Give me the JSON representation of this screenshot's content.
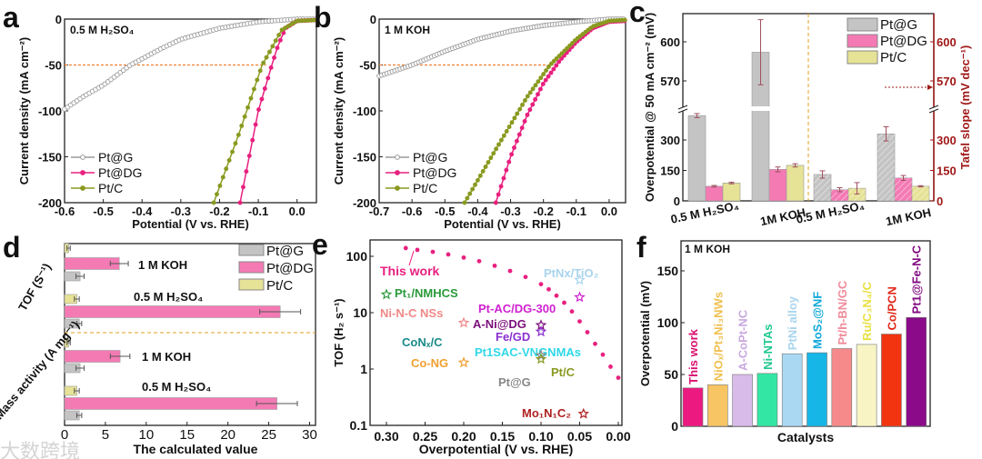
{
  "watermark": "大数跨境",
  "chart_data": [
    {
      "panel": "a",
      "type": "line",
      "annotation": "0.5 M H₂SO₄",
      "xlabel": "Potential (V vs. RHE)",
      "ylabel": "Current density (mA cm⁻²)",
      "xlim": [
        -0.6,
        0.05
      ],
      "ylim": [
        -200,
        0
      ],
      "xticks": [
        -0.6,
        -0.5,
        -0.4,
        -0.3,
        -0.2,
        -0.1,
        0.0
      ],
      "yticks": [
        0,
        -50,
        -100,
        -150,
        -200
      ],
      "reference_line": {
        "y": -50,
        "x_end": -0.08
      },
      "series": [
        {
          "name": "Pt@G",
          "color": "#9a9a9a",
          "marker": "open-circle",
          "points": [
            [
              -0.6,
              -98
            ],
            [
              -0.55,
              -84
            ],
            [
              -0.5,
              -72
            ],
            [
              -0.43,
              -50
            ],
            [
              -0.35,
              -32
            ],
            [
              -0.3,
              -22
            ],
            [
              -0.2,
              -10
            ],
            [
              -0.1,
              -3
            ],
            [
              0,
              0
            ],
            [
              0.05,
              0
            ]
          ]
        },
        {
          "name": "Pt@DG",
          "color": "#e8207f",
          "marker": "filled-circle",
          "points": [
            [
              -0.147,
              -200
            ],
            [
              -0.1,
              -100
            ],
            [
              -0.065,
              -50
            ],
            [
              -0.05,
              -30
            ],
            [
              -0.03,
              -10
            ],
            [
              0,
              -2
            ],
            [
              0.05,
              -1
            ]
          ]
        },
        {
          "name": "Pt/C",
          "color": "#8a9a20",
          "marker": "filled-circle",
          "points": [
            [
              -0.215,
              -200
            ],
            [
              -0.15,
              -125
            ],
            [
              -0.09,
              -50
            ],
            [
              -0.07,
              -35
            ],
            [
              -0.04,
              -12
            ],
            [
              0,
              -2
            ],
            [
              0.05,
              -1
            ]
          ]
        }
      ]
    },
    {
      "panel": "b",
      "type": "line",
      "annotation": "1 M KOH",
      "xlabel": "Potential (V vs. RHE)",
      "ylabel": "Current density (mA cm⁻²)",
      "xlim": [
        -0.7,
        0.05
      ],
      "ylim": [
        -200,
        0
      ],
      "xticks": [
        -0.7,
        -0.6,
        -0.5,
        -0.4,
        -0.3,
        -0.2,
        -0.1,
        0.0
      ],
      "yticks": [
        0,
        -50,
        -100,
        -150,
        -200
      ],
      "reference_line": {
        "y": -50,
        "x_end": -0.17
      },
      "series": [
        {
          "name": "Pt@G",
          "color": "#9a9a9a",
          "marker": "open-circle",
          "points": [
            [
              -0.7,
              -62
            ],
            [
              -0.6,
              -50
            ],
            [
              -0.5,
              -35
            ],
            [
              -0.4,
              -22
            ],
            [
              -0.3,
              -13
            ],
            [
              -0.2,
              -7
            ],
            [
              -0.1,
              -3
            ],
            [
              0,
              0
            ],
            [
              0.05,
              0
            ]
          ]
        },
        {
          "name": "Pt@DG",
          "color": "#e8207f",
          "marker": "filled-circle",
          "points": [
            [
              -0.345,
              -200
            ],
            [
              -0.3,
              -150
            ],
            [
              -0.25,
              -105
            ],
            [
              -0.2,
              -70
            ],
            [
              -0.15,
              -45
            ],
            [
              -0.1,
              -25
            ],
            [
              -0.05,
              -10
            ],
            [
              0,
              -3
            ],
            [
              0.05,
              -2
            ]
          ]
        },
        {
          "name": "Pt/C",
          "color": "#8a9a20",
          "marker": "filled-circle",
          "points": [
            [
              -0.44,
              -200
            ],
            [
              -0.35,
              -145
            ],
            [
              -0.25,
              -85
            ],
            [
              -0.18,
              -50
            ],
            [
              -0.1,
              -22
            ],
            [
              -0.05,
              -8
            ],
            [
              0,
              -2
            ],
            [
              0.05,
              -1
            ]
          ]
        }
      ]
    },
    {
      "panel": "c",
      "type": "bar",
      "ylabel": "Overpotential @ 50 mA cm⁻² (mV)",
      "ylabel_right": "Tafel slope (mV dec⁻¹)",
      "y_break": [
        440,
        548
      ],
      "ylim": [
        0,
        620
      ],
      "yticks": [
        0,
        150,
        300,
        570,
        600
      ],
      "categories": [
        "0.5 M H₂SO₄",
        "1M KOH",
        "0.5 M H₂SO₄",
        "1M KOH"
      ],
      "category_metric": [
        "overpotential",
        "overpotential",
        "tafel",
        "tafel"
      ],
      "series": [
        {
          "name": "Pt@G",
          "color": "#c4c4c4",
          "values": [
            420,
            592,
            130,
            330
          ],
          "errors": [
            10,
            25,
            18,
            35
          ]
        },
        {
          "name": "Pt@DG",
          "color": "#f47ab4",
          "values": [
            72,
            155,
            55,
            113
          ],
          "errors": [
            4,
            12,
            10,
            12
          ]
        },
        {
          "name": "Pt/C",
          "color": "#e6e296",
          "values": [
            88,
            175,
            62,
            72
          ],
          "errors": [
            4,
            8,
            28,
            3
          ]
        }
      ]
    },
    {
      "panel": "d",
      "type": "bar",
      "orientation": "horizontal",
      "xlabel": "The calculated value",
      "xlim": [
        0,
        30
      ],
      "xticks": [
        0,
        5,
        10,
        15,
        20,
        25,
        30
      ],
      "sections": [
        {
          "label": "TOF (S⁻¹)",
          "groups": [
            {
              "label": "1 M KOH",
              "values": {
                "Pt/C": 0.5,
                "Pt@DG": 6.7,
                "Pt@G": 1.9
              },
              "errors": {
                "Pt/C": 0.2,
                "Pt@DG": 1.1,
                "Pt@G": 0.5
              }
            },
            {
              "label": "0.5 M H₂SO₄",
              "values": {
                "Pt/C": 1.5,
                "Pt@DG": 26.4,
                "Pt@G": 1.8
              },
              "errors": {
                "Pt/C": 0.3,
                "Pt@DG": 2.5,
                "Pt@G": 0.3
              }
            }
          ]
        },
        {
          "label": "Mass activity (A mg⁻¹)",
          "groups": [
            {
              "label": "1 M KOH",
              "values": {
                "Pt/C": 0.5,
                "Pt@DG": 6.8,
                "Pt@G": 1.9
              },
              "errors": {
                "Pt/C": 0.2,
                "Pt@DG": 1.2,
                "Pt@G": 0.5
              }
            },
            {
              "label": "0.5 M H₂SO₄",
              "values": {
                "Pt/C": 1.5,
                "Pt@DG": 26.0,
                "Pt@G": 1.8
              },
              "errors": {
                "Pt/C": 0.3,
                "Pt@DG": 2.5,
                "Pt@G": 0.3
              }
            }
          ]
        }
      ],
      "legend": [
        {
          "name": "Pt@G",
          "color": "#c4c4c4"
        },
        {
          "name": "Pt@DG",
          "color": "#f47ab4"
        },
        {
          "name": "Pt/C",
          "color": "#e6e296"
        }
      ]
    },
    {
      "panel": "e",
      "type": "scatter",
      "xlabel": "Overpotential (V vs. RHE)",
      "ylabel": "TOF (H₂ s⁻¹)",
      "xlim": [
        0.32,
        0.0
      ],
      "ylim": [
        0.1,
        200
      ],
      "yscale": "log",
      "xticks": [
        0.3,
        0.25,
        0.2,
        0.15,
        0.1,
        0.05,
        0.0
      ],
      "yticks": [
        {
          "v": 100,
          "label": "100"
        },
        {
          "v": 10,
          "label": "10"
        },
        {
          "v": 1,
          "label": "1"
        },
        {
          "v": 0.1,
          "label": "0.1"
        }
      ],
      "this_work": {
        "label": "This work",
        "color": "#e8207f",
        "points": [
          [
            0.275,
            140
          ],
          [
            0.26,
            130
          ],
          [
            0.24,
            120
          ],
          [
            0.22,
            108
          ],
          [
            0.2,
            95
          ],
          [
            0.18,
            82
          ],
          [
            0.16,
            68
          ],
          [
            0.14,
            55
          ],
          [
            0.12,
            43
          ],
          [
            0.1,
            32
          ],
          [
            0.09,
            26
          ],
          [
            0.08,
            20
          ],
          [
            0.07,
            15
          ],
          [
            0.06,
            10.5
          ],
          [
            0.05,
            7
          ],
          [
            0.04,
            4.5
          ],
          [
            0.03,
            2.8
          ],
          [
            0.02,
            1.8
          ],
          [
            0.01,
            1.1
          ],
          [
            0.0,
            0.7
          ]
        ]
      },
      "references": [
        {
          "label": "Pt₁/NMHCS",
          "x": 0.3,
          "y": 21,
          "color": "#2a9a3a"
        },
        {
          "label": "Ni-N-C NSs",
          "x": 0.2,
          "y": 6.6,
          "color": "#f08888"
        },
        {
          "label": "CoNₓ/C",
          "x": 0.2,
          "y": 6.6,
          "color": "#1a8a8a"
        },
        {
          "label": "Co-NG",
          "x": 0.2,
          "y": 1.3,
          "color": "#f0a030"
        },
        {
          "label": "Pt-AC/DG-300",
          "x": 0.05,
          "y": 18.8,
          "color": "#d020d0"
        },
        {
          "label": "PtNx/TiO₂",
          "x": 0.05,
          "y": 38,
          "color": "#a8d4ee"
        },
        {
          "label": "A-Ni@DG",
          "x": 0.1,
          "y": 6,
          "color": "#7a107a"
        },
        {
          "label": "Fe/GD",
          "x": 0.1,
          "y": 4.6,
          "color": "#8a30d0"
        },
        {
          "label": "Pt1SAC-VNGNMAs",
          "x": 0.1,
          "y": 4.6,
          "color": "#30d8e8"
        },
        {
          "label": "Pt@G",
          "x": 0.1,
          "y": 1.75,
          "color": "#888888"
        },
        {
          "label": "Pt/C",
          "x": 0.1,
          "y": 1.5,
          "color": "#8a9a20"
        },
        {
          "label": "Mo₁N₁C₂",
          "x": 0.045,
          "y": 0.16,
          "color": "#b02020"
        }
      ]
    },
    {
      "panel": "f",
      "type": "bar",
      "annotation": "1 M KOH",
      "xlabel": "Catalysts",
      "ylabel": "Overpotential (mV)",
      "ylim": [
        0,
        180
      ],
      "yticks": [
        0,
        50,
        100,
        150
      ],
      "categories": [
        "This work",
        "NiOₓ/Pt₃Ni₃NWs",
        "A-CoPt-NC",
        "Ni-NTAs",
        "PtNi alloy",
        "MoS₂@NF",
        "Pt/h-BN/GC",
        "Ru/C₃N₄/C",
        "Co/PCN",
        "Pt1@Fe-N-C"
      ],
      "values": [
        37,
        40,
        50,
        51,
        70,
        71,
        75,
        79,
        89,
        105
      ],
      "colors": [
        "#ec1a80",
        "#f7c564",
        "#d9bbe9",
        "#34e6a4",
        "#aad8f2",
        "#16b6e6",
        "#f68a8a",
        "#f8f4c4",
        "#f23410",
        "#8a0a8a"
      ],
      "label_colors": [
        "#d81070",
        "#f0c050",
        "#c8a8e0",
        "#20c890",
        "#a8d4ee",
        "#10a8d8",
        "#f08a9a",
        "#e8e040",
        "#e02818",
        "#800880"
      ]
    }
  ]
}
